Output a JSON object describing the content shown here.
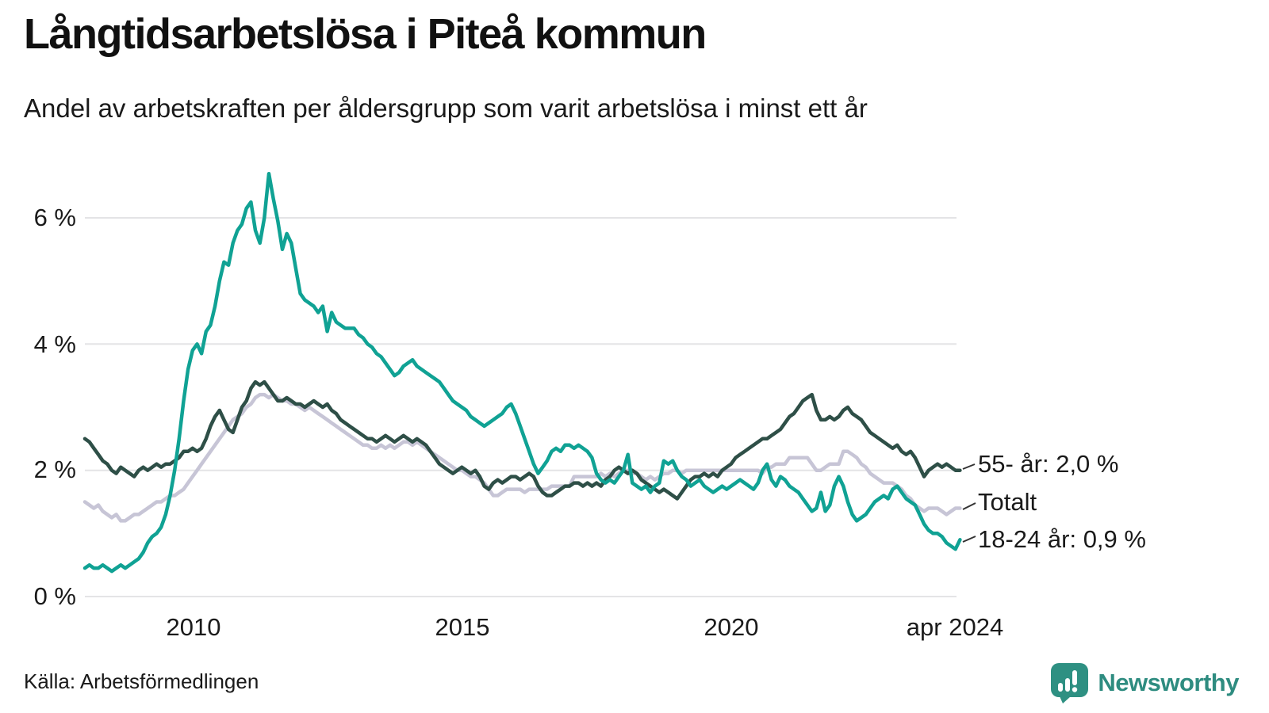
{
  "header": {
    "title": "Långtidsarbetslösa i Piteå kommun",
    "subtitle": "Andel av arbetskraften per åldersgrupp som varit arbetslösa i minst ett år"
  },
  "footer": {
    "source": "Källa: Arbetsförmedlingen",
    "logo_text": "Newsworthy",
    "logo_color": "#2e9082"
  },
  "chart_data": {
    "type": "line",
    "title": "Långtidsarbetslösa i Piteå kommun",
    "subtitle": "Andel av arbetskraften per åldersgrupp som varit arbetslösa i minst ett år",
    "unit": "% av arbetskraften",
    "grid": "horizontal",
    "legend_position": "right-end-labels",
    "xlim": [
      2008.0,
      2024.33
    ],
    "ylim": [
      0,
      6.9
    ],
    "x_ticks": [
      {
        "label": "2010",
        "year": 2010
      },
      {
        "label": "2015",
        "year": 2015
      },
      {
        "label": "2020",
        "year": 2020
      },
      {
        "label": "apr 2024",
        "year": 2024.25
      }
    ],
    "y_ticks": [
      {
        "label": "6 %",
        "value": 6
      },
      {
        "label": "4 %",
        "value": 4
      },
      {
        "label": "2 %",
        "value": 2
      },
      {
        "label": "0 %",
        "value": 0
      }
    ],
    "x_resolution": "monthly",
    "series": [
      {
        "id": "totalt",
        "name": "Totalt",
        "end_label": "Totalt",
        "last_value": 1.4,
        "color": "#c7c5d6",
        "start_year": 2008,
        "monthly_values": [
          1.5,
          1.45,
          1.4,
          1.45,
          1.35,
          1.3,
          1.25,
          1.3,
          1.2,
          1.2,
          1.25,
          1.3,
          1.3,
          1.35,
          1.4,
          1.45,
          1.5,
          1.5,
          1.55,
          1.6,
          1.6,
          1.65,
          1.7,
          1.8,
          1.9,
          2.0,
          2.1,
          2.2,
          2.3,
          2.4,
          2.5,
          2.6,
          2.7,
          2.8,
          2.85,
          2.9,
          3.0,
          3.05,
          3.15,
          3.2,
          3.2,
          3.15,
          3.2,
          3.15,
          3.1,
          3.1,
          3.05,
          3.05,
          3.0,
          2.95,
          3.0,
          2.95,
          2.9,
          2.85,
          2.8,
          2.75,
          2.7,
          2.65,
          2.6,
          2.55,
          2.5,
          2.45,
          2.4,
          2.4,
          2.35,
          2.35,
          2.4,
          2.35,
          2.4,
          2.35,
          2.4,
          2.45,
          2.45,
          2.4,
          2.45,
          2.4,
          2.35,
          2.3,
          2.25,
          2.2,
          2.15,
          2.1,
          2.05,
          2.0,
          2.0,
          1.95,
          1.9,
          1.9,
          1.85,
          1.8,
          1.7,
          1.6,
          1.6,
          1.65,
          1.7,
          1.7,
          1.7,
          1.7,
          1.65,
          1.7,
          1.7,
          1.7,
          1.7,
          1.7,
          1.75,
          1.75,
          1.75,
          1.75,
          1.75,
          1.9,
          1.9,
          1.9,
          1.9,
          1.9,
          1.9,
          1.95,
          1.9,
          1.95,
          1.9,
          1.95,
          2.0,
          2.0,
          1.95,
          1.95,
          1.9,
          1.85,
          1.9,
          1.85,
          1.9,
          1.95,
          1.95,
          2.0,
          2.0,
          1.95,
          2.0,
          2.0,
          2.0,
          2.0,
          2.0,
          2.0,
          2.0,
          2.0,
          2.0,
          2.0,
          2.0,
          2.0,
          2.0,
          2.0,
          2.0,
          2.0,
          2.0,
          1.95,
          2.05,
          2.05,
          2.1,
          2.1,
          2.1,
          2.2,
          2.2,
          2.2,
          2.2,
          2.2,
          2.1,
          2.0,
          2.0,
          2.05,
          2.1,
          2.1,
          2.1,
          2.3,
          2.3,
          2.25,
          2.2,
          2.1,
          2.05,
          1.95,
          1.9,
          1.85,
          1.8,
          1.8,
          1.8,
          1.75,
          1.7,
          1.6,
          1.55,
          1.45,
          1.4,
          1.35,
          1.4,
          1.4,
          1.4,
          1.35,
          1.3,
          1.35,
          1.4,
          1.4
        ]
      },
      {
        "id": "55",
        "name": "55- år",
        "end_label": "55- år: 2,0 %",
        "last_value": 2.0,
        "color": "#2e4f47",
        "start_year": 2008,
        "monthly_values": [
          2.5,
          2.45,
          2.35,
          2.25,
          2.15,
          2.1,
          2.0,
          1.95,
          2.05,
          2.0,
          1.95,
          1.9,
          2.0,
          2.05,
          2.0,
          2.05,
          2.1,
          2.05,
          2.1,
          2.1,
          2.15,
          2.2,
          2.3,
          2.3,
          2.35,
          2.3,
          2.35,
          2.5,
          2.7,
          2.85,
          2.95,
          2.8,
          2.65,
          2.6,
          2.8,
          3.0,
          3.1,
          3.3,
          3.4,
          3.35,
          3.4,
          3.3,
          3.2,
          3.1,
          3.1,
          3.15,
          3.1,
          3.05,
          3.05,
          3.0,
          3.05,
          3.1,
          3.05,
          3.0,
          3.05,
          2.95,
          2.9,
          2.8,
          2.75,
          2.7,
          2.65,
          2.6,
          2.55,
          2.5,
          2.5,
          2.45,
          2.5,
          2.55,
          2.5,
          2.45,
          2.5,
          2.55,
          2.5,
          2.45,
          2.5,
          2.45,
          2.4,
          2.3,
          2.2,
          2.1,
          2.05,
          2.0,
          1.95,
          2.0,
          2.05,
          2.0,
          1.95,
          2.0,
          1.9,
          1.75,
          1.7,
          1.8,
          1.85,
          1.8,
          1.85,
          1.9,
          1.9,
          1.85,
          1.9,
          1.95,
          1.9,
          1.75,
          1.65,
          1.6,
          1.6,
          1.65,
          1.7,
          1.75,
          1.75,
          1.8,
          1.8,
          1.75,
          1.8,
          1.75,
          1.8,
          1.75,
          1.85,
          1.9,
          2.0,
          2.05,
          2.0,
          1.95,
          2.0,
          1.95,
          1.85,
          1.8,
          1.75,
          1.7,
          1.65,
          1.7,
          1.65,
          1.6,
          1.55,
          1.65,
          1.75,
          1.85,
          1.9,
          1.9,
          1.95,
          1.9,
          1.95,
          1.9,
          2.0,
          2.05,
          2.1,
          2.2,
          2.25,
          2.3,
          2.35,
          2.4,
          2.45,
          2.5,
          2.5,
          2.55,
          2.6,
          2.65,
          2.75,
          2.85,
          2.9,
          3.0,
          3.1,
          3.15,
          3.2,
          2.95,
          2.8,
          2.8,
          2.85,
          2.8,
          2.85,
          2.95,
          3.0,
          2.9,
          2.85,
          2.8,
          2.7,
          2.6,
          2.55,
          2.5,
          2.45,
          2.4,
          2.35,
          2.4,
          2.3,
          2.25,
          2.3,
          2.2,
          2.05,
          1.9,
          2.0,
          2.05,
          2.1,
          2.05,
          2.1,
          2.05,
          2.0,
          2.0
        ]
      },
      {
        "id": "18-24",
        "name": "18-24 år",
        "end_label": "18-24 år: 0,9 %",
        "last_value": 0.9,
        "color": "#10a294",
        "start_year": 2008,
        "monthly_values": [
          0.45,
          0.5,
          0.45,
          0.45,
          0.5,
          0.45,
          0.4,
          0.45,
          0.5,
          0.45,
          0.5,
          0.55,
          0.6,
          0.7,
          0.85,
          0.95,
          1.0,
          1.1,
          1.3,
          1.6,
          2.0,
          2.5,
          3.1,
          3.6,
          3.9,
          4.0,
          3.85,
          4.2,
          4.3,
          4.6,
          5.0,
          5.3,
          5.25,
          5.6,
          5.8,
          5.9,
          6.15,
          6.25,
          5.8,
          5.6,
          6.0,
          6.7,
          6.3,
          5.95,
          5.5,
          5.75,
          5.6,
          5.2,
          4.8,
          4.7,
          4.65,
          4.6,
          4.5,
          4.6,
          4.2,
          4.5,
          4.35,
          4.3,
          4.25,
          4.25,
          4.25,
          4.15,
          4.1,
          4.0,
          3.95,
          3.85,
          3.8,
          3.7,
          3.6,
          3.5,
          3.55,
          3.65,
          3.7,
          3.75,
          3.65,
          3.6,
          3.55,
          3.5,
          3.45,
          3.4,
          3.3,
          3.2,
          3.1,
          3.05,
          3.0,
          2.95,
          2.85,
          2.8,
          2.75,
          2.7,
          2.75,
          2.8,
          2.85,
          2.9,
          3.0,
          3.05,
          2.9,
          2.7,
          2.5,
          2.3,
          2.1,
          1.95,
          2.05,
          2.15,
          2.3,
          2.35,
          2.3,
          2.4,
          2.4,
          2.35,
          2.4,
          2.35,
          2.3,
          2.2,
          1.95,
          1.85,
          1.8,
          1.85,
          1.8,
          1.9,
          2.0,
          2.25,
          1.8,
          1.75,
          1.7,
          1.75,
          1.65,
          1.75,
          1.8,
          2.15,
          2.1,
          2.15,
          2.0,
          1.9,
          1.85,
          1.75,
          1.8,
          1.85,
          1.75,
          1.7,
          1.65,
          1.7,
          1.75,
          1.7,
          1.75,
          1.8,
          1.85,
          1.8,
          1.75,
          1.7,
          1.8,
          2.0,
          2.1,
          1.85,
          1.75,
          1.9,
          1.85,
          1.75,
          1.7,
          1.65,
          1.55,
          1.45,
          1.35,
          1.4,
          1.65,
          1.35,
          1.45,
          1.75,
          1.9,
          1.75,
          1.5,
          1.3,
          1.2,
          1.25,
          1.3,
          1.4,
          1.5,
          1.55,
          1.6,
          1.55,
          1.7,
          1.75,
          1.65,
          1.55,
          1.5,
          1.45,
          1.3,
          1.15,
          1.05,
          1.0,
          1.0,
          0.95,
          0.85,
          0.8,
          0.75,
          0.9
        ]
      }
    ]
  }
}
